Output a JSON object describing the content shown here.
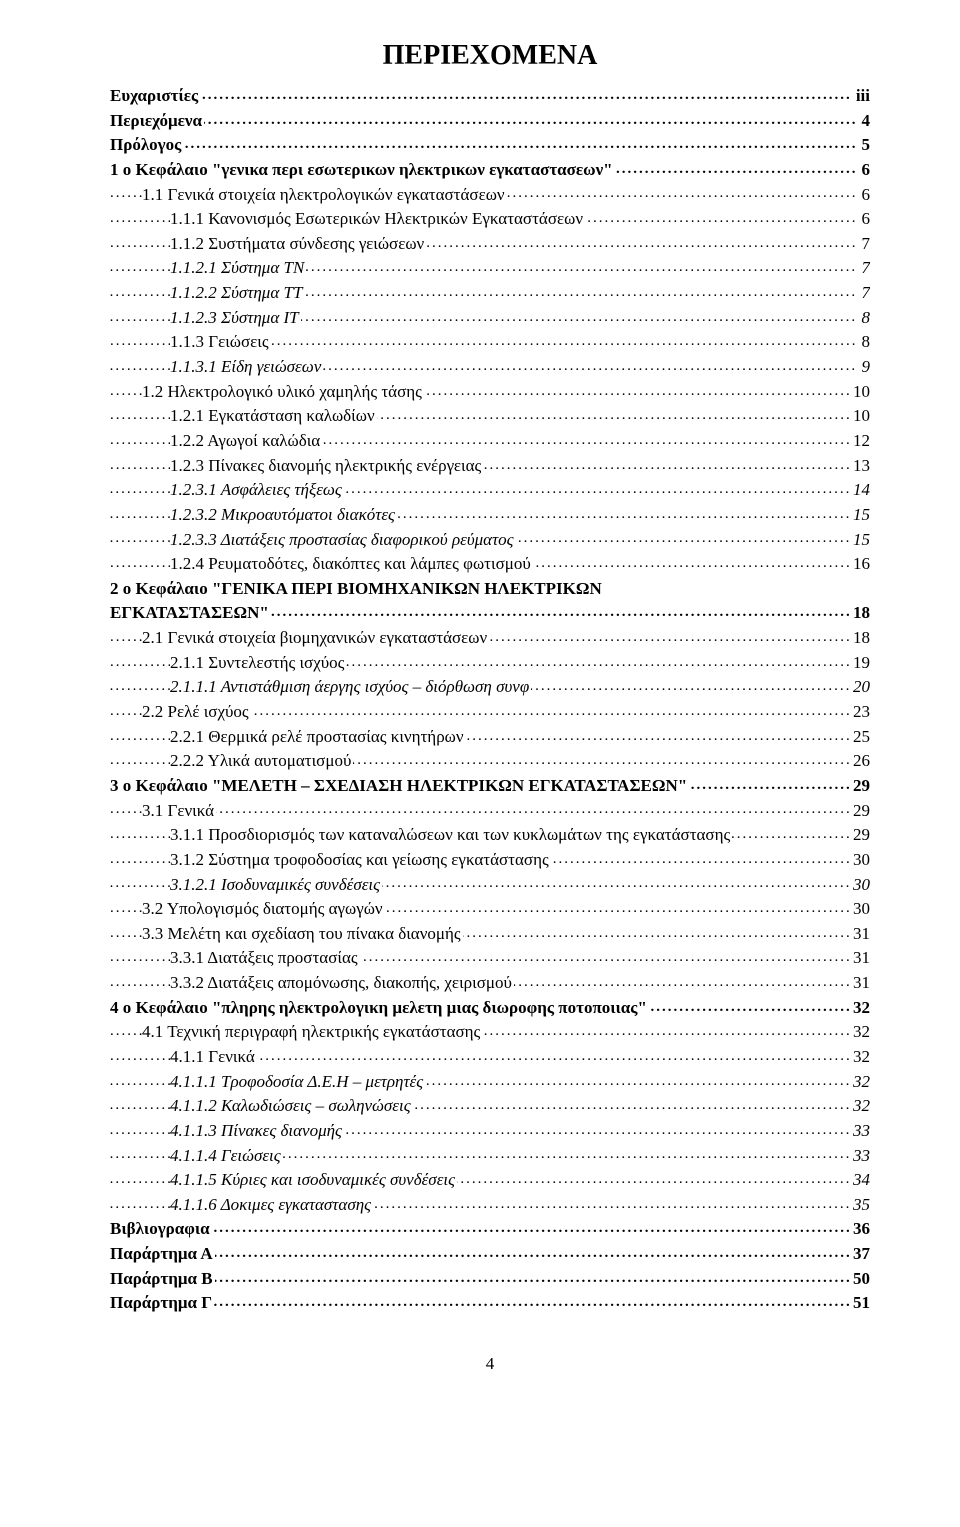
{
  "title": "ΠΕΡΙΕΧΟΜΕΝΑ",
  "page_number": "4",
  "styles": {
    "font_family": "Times New Roman",
    "title_fontsize": 28,
    "body_fontsize": 17,
    "text_color": "#000000",
    "background_color": "#ffffff"
  },
  "entries": [
    {
      "label": "Ευχαριστίες",
      "page": "iii",
      "level": 0,
      "bold": true,
      "italic": false
    },
    {
      "label": "Περιεχόμενα",
      "page": "4",
      "level": 0,
      "bold": true,
      "italic": false
    },
    {
      "label": "Πρόλογος",
      "page": "5",
      "level": 0,
      "bold": true,
      "italic": false
    },
    {
      "label": "1 ο Κεφάλαιο \"γενικα περι εσωτερικων ηλεκτρικων εγκαταστασεων\"",
      "page": "6",
      "level": 0,
      "bold": true,
      "italic": false
    },
    {
      "label": "1.1    Γενικά στοιχεία ηλεκτρολογικών εγκαταστάσεων",
      "page": "6",
      "level": 1,
      "bold": false,
      "italic": false
    },
    {
      "label": "1.1.1    Κανονισμός Εσωτερικών Ηλεκτρικών Εγκαταστάσεων",
      "page": "6",
      "level": 2,
      "bold": false,
      "italic": false
    },
    {
      "label": "1.1.2    Συστήματα σύνδεσης γειώσεων",
      "page": "7",
      "level": 2,
      "bold": false,
      "italic": false
    },
    {
      "label": "1.1.2.1    Σύστημα TN",
      "page": "7",
      "level": 3,
      "bold": false,
      "italic": true
    },
    {
      "label": "1.1.2.2    Σύστημα TT",
      "page": "7",
      "level": 3,
      "bold": false,
      "italic": true
    },
    {
      "label": "1.1.2.3    Σύστημα IT",
      "page": "8",
      "level": 3,
      "bold": false,
      "italic": true
    },
    {
      "label": "1.1.3    Γειώσεις",
      "page": "8",
      "level": 2,
      "bold": false,
      "italic": false
    },
    {
      "label": "1.1.3.1    Είδη γειώσεων",
      "page": "9",
      "level": 3,
      "bold": false,
      "italic": true
    },
    {
      "label": "1.2    Ηλεκτρολογικό υλικό χαμηλής τάσης",
      "page": "10",
      "level": 1,
      "bold": false,
      "italic": false
    },
    {
      "label": "1.2.1    Εγκατάσταση καλωδίων",
      "page": "10",
      "level": 2,
      "bold": false,
      "italic": false
    },
    {
      "label": "1.2.2    Αγωγοί καλώδια",
      "page": "12",
      "level": 2,
      "bold": false,
      "italic": false
    },
    {
      "label": "1.2.3    Πίνακες διανομής ηλεκτρικής ενέργειας",
      "page": "13",
      "level": 2,
      "bold": false,
      "italic": false
    },
    {
      "label": "1.2.3.1    Ασφάλειες τήξεως",
      "page": "14",
      "level": 3,
      "bold": false,
      "italic": true
    },
    {
      "label": "1.2.3.2    Μικροαυτόματοι διακότες",
      "page": "15",
      "level": 3,
      "bold": false,
      "italic": true
    },
    {
      "label": "1.2.3.3    Διατάξεις προστασίας διαφορικού ρεύματος",
      "page": "15",
      "level": 3,
      "bold": false,
      "italic": true
    },
    {
      "label": "1.2.4    Ρευματοδότες, διακόπτες και λάμπες φωτισμού",
      "page": "16",
      "level": 2,
      "bold": false,
      "italic": false
    },
    {
      "label": "2 ο Κεφάλαιο \"ΓΕΝΙΚΑ ΠΕΡΙ ΒΙΟΜΗΧΑΝΙΚΩΝ ΗΛΕΚΤΡΙΚΩΝ\nΕΓΚΑΤΑΣΤΑΣΕΩΝ\"",
      "page": "18",
      "level": 0,
      "bold": true,
      "italic": false,
      "multiline": true
    },
    {
      "label": "2.1    Γενικά στοιχεία βιομηχανικών εγκαταστάσεων",
      "page": "18",
      "level": 1,
      "bold": false,
      "italic": false
    },
    {
      "label": "2.1.1    Συντελεστής ισχύος",
      "page": "19",
      "level": 2,
      "bold": false,
      "italic": false
    },
    {
      "label": "2.1.1.1    Αντιστάθμιση άεργης ισχύος – διόρθωση συνφ",
      "page": "20",
      "level": 3,
      "bold": false,
      "italic": true
    },
    {
      "label": "2.2    Ρελέ ισχύος",
      "page": "23",
      "level": 1,
      "bold": false,
      "italic": false
    },
    {
      "label": "2.2.1    Θερμικά ρελέ προστασίας κινητήρων",
      "page": "25",
      "level": 2,
      "bold": false,
      "italic": false
    },
    {
      "label": "2.2.2    Υλικά αυτοματισμού",
      "page": "26",
      "level": 2,
      "bold": false,
      "italic": false
    },
    {
      "label": "3 ο Κεφάλαιο \"ΜΕΛΕΤΗ – ΣΧΕΔΙΑΣΗ ΗΛΕΚΤΡΙΚΩΝ ΕΓΚΑΤΑΣΤΑΣΕΩΝ\"",
      "page": "29",
      "level": 0,
      "bold": true,
      "italic": false
    },
    {
      "label": "3.1    Γενικά",
      "page": "29",
      "level": 1,
      "bold": false,
      "italic": false
    },
    {
      "label": "3.1.1    Προσδιορισμός των καταναλώσεων και των κυκλωμάτων της εγκατάστασης",
      "page": "29",
      "level": 2,
      "bold": false,
      "italic": false
    },
    {
      "label": "3.1.2    Σύστημα τροφοδοσίας και γείωσης εγκατάστασης",
      "page": "30",
      "level": 2,
      "bold": false,
      "italic": false
    },
    {
      "label": "3.1.2.1    Ισοδυναμικές συνδέσεις",
      "page": "30",
      "level": 3,
      "bold": false,
      "italic": true
    },
    {
      "label": "3.2    Υπολογισμός διατομής αγωγών",
      "page": "30",
      "level": 1,
      "bold": false,
      "italic": false
    },
    {
      "label": "3.3    Μελέτη και σχεδίαση του πίνακα διανομής",
      "page": "31",
      "level": 1,
      "bold": false,
      "italic": false
    },
    {
      "label": "3.3.1    Διατάξεις προστασίας",
      "page": "31",
      "level": 2,
      "bold": false,
      "italic": false
    },
    {
      "label": "3.3.2    Διατάξεις απομόνωσης, διακοπής, χειρισμού",
      "page": "31",
      "level": 2,
      "bold": false,
      "italic": false
    },
    {
      "label": "4 ο Κεφάλαιο \"πληρης ηλεκτρολογικη μελετη μιας  διωροφης ποτοποιιας\"",
      "page": "32",
      "level": 0,
      "bold": true,
      "italic": false
    },
    {
      "label": "4.1    Τεχνική περιγραφή ηλεκτρικής εγκατάστασης",
      "page": "32",
      "level": 1,
      "bold": false,
      "italic": false
    },
    {
      "label": "4.1.1    Γενικά",
      "page": "32",
      "level": 2,
      "bold": false,
      "italic": false
    },
    {
      "label": "4.1.1.1    Τροφοδοσία Δ.Ε.Η – μετρητές",
      "page": "32",
      "level": 3,
      "bold": false,
      "italic": true
    },
    {
      "label": "4.1.1.2    Καλωδιώσεις – σωληνώσεις",
      "page": "32",
      "level": 3,
      "bold": false,
      "italic": true
    },
    {
      "label": "4.1.1.3    Πίνακες διανομής",
      "page": "33",
      "level": 3,
      "bold": false,
      "italic": true
    },
    {
      "label": "4.1.1.4    Γειώσεις",
      "page": "33",
      "level": 3,
      "bold": false,
      "italic": true
    },
    {
      "label": "4.1.1.5    Κύριες και ισοδυναμικές συνδέσεις",
      "page": "34",
      "level": 3,
      "bold": false,
      "italic": true
    },
    {
      "label": "4.1.1.6    Δοκιμες εγκαταστασης",
      "page": "35",
      "level": 3,
      "bold": false,
      "italic": true
    },
    {
      "label": "Βιβλιογραφια",
      "page": "36",
      "level": 0,
      "bold": true,
      "italic": false
    },
    {
      "label": "Παράρτημα Α",
      "page": "37",
      "level": 0,
      "bold": true,
      "italic": false
    },
    {
      "label": "Παράρτημα Β",
      "page": "50",
      "level": 0,
      "bold": true,
      "italic": false
    },
    {
      "label": "Παράρτημα Γ",
      "page": "51",
      "level": 0,
      "bold": true,
      "italic": false
    }
  ]
}
